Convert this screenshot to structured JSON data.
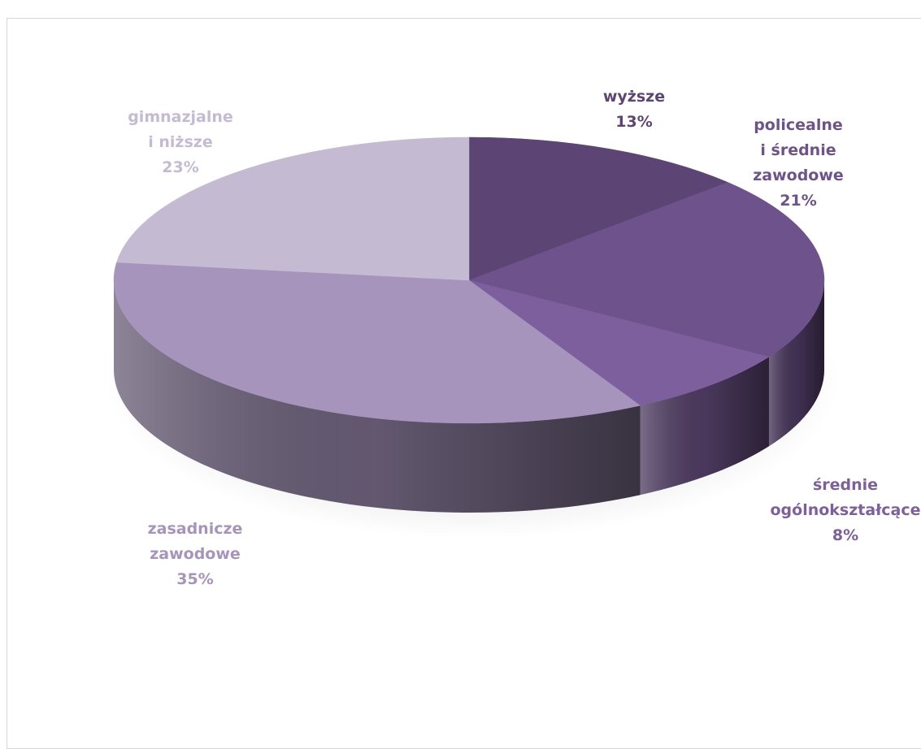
{
  "chart_data": {
    "type": "pie",
    "title": "",
    "slices": [
      {
        "label_lines": [
          "wyższe"
        ],
        "value_label": "13%",
        "value": 13,
        "color": "#5c4575",
        "label_color": "#5c4575"
      },
      {
        "label_lines": [
          "policealne",
          "i średnie",
          "zawodowe"
        ],
        "value_label": "21%",
        "value": 21,
        "color": "#6e528c",
        "label_color": "#6e528c"
      },
      {
        "label_lines": [
          "średnie",
          "ogólnokształcące"
        ],
        "value_label": "8%",
        "value": 8,
        "color": "#7d5f9d",
        "label_color": "#7d5f9d"
      },
      {
        "label_lines": [
          "zasadnicze",
          "zawodowe"
        ],
        "value_label": "35%",
        "value": 35,
        "color": "#a694bc",
        "label_color": "#a694bc"
      },
      {
        "label_lines": [
          "gimnazjalne",
          "i niższe"
        ],
        "value_label": "23%",
        "value": 23,
        "color": "#c4bbd3",
        "label_color": "#c4bbd3"
      }
    ],
    "start_angle_deg": 0,
    "direction": "clockwise",
    "style": "3d"
  }
}
